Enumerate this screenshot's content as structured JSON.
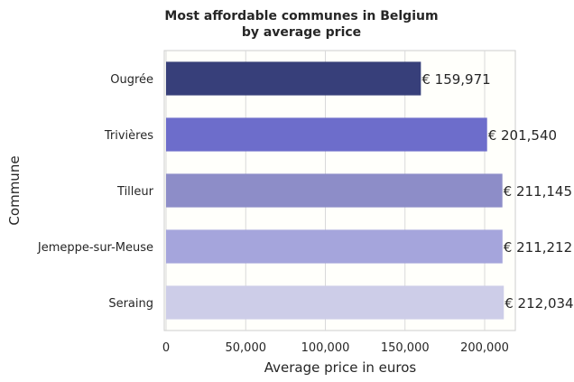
{
  "chart_data": {
    "type": "bar",
    "orientation": "horizontal",
    "title": "Most affordable communes in Belgium\nby average price",
    "title_lines": [
      "Most affordable communes in Belgium",
      "by average price"
    ],
    "xlabel": "Average price in euros",
    "ylabel": "Commune",
    "categories": [
      "Ougrée",
      "Trivières",
      "Tilleur",
      "Jemeppe-sur-Meuse",
      "Seraing"
    ],
    "values": [
      159971,
      201540,
      211145,
      211212,
      212034
    ],
    "data_labels": [
      "€ 159,971",
      "€ 201,540",
      "€ 211,145",
      "€ 211,212",
      "€ 212,034"
    ],
    "bar_colors": [
      "#373f7a",
      "#6d6dcb",
      "#8d8dc8",
      "#a5a5dc",
      "#cdcde8"
    ],
    "xlim": [
      0,
      222000
    ],
    "xticks": [
      0,
      50000,
      100000,
      150000,
      200000
    ],
    "xtick_labels": [
      "0",
      "50,000",
      "100,000",
      "150,000",
      "200,000"
    ],
    "grid": "vertical",
    "legend": "none"
  }
}
